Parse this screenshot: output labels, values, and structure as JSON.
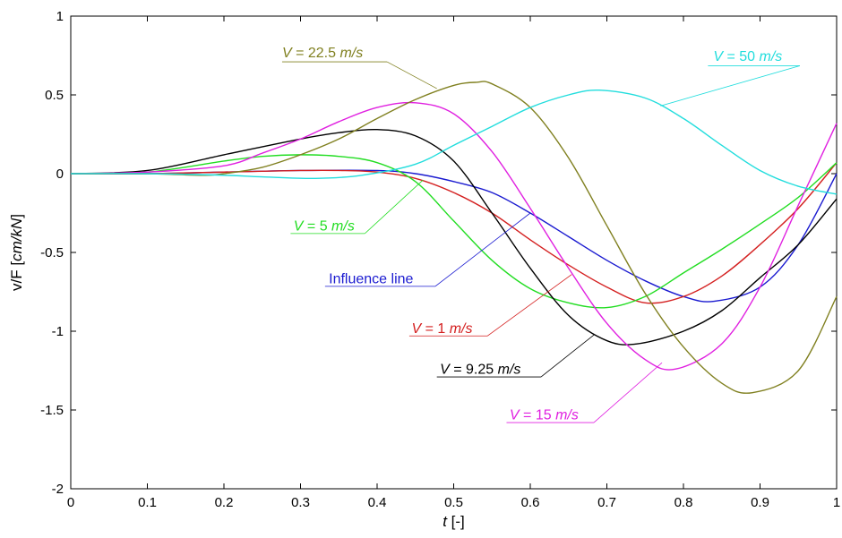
{
  "chart_data": {
    "type": "line",
    "xlabel": "t [-]",
    "xlabel_parts": {
      "var": "t",
      "unit": " [-]"
    },
    "ylabel": "v/F [cm/kN]",
    "ylabel_parts": {
      "pre": "v/F [",
      "unit": "cm/kN",
      "post": "]"
    },
    "xlim": [
      0,
      1
    ],
    "ylim": [
      -2,
      1
    ],
    "x_ticks": [
      {
        "value": 0,
        "label": "0"
      },
      {
        "value": 0.1,
        "label": "0.1"
      },
      {
        "value": 0.2,
        "label": "0.2"
      },
      {
        "value": 0.3,
        "label": "0.3"
      },
      {
        "value": 0.4,
        "label": "0.4"
      },
      {
        "value": 0.5,
        "label": "0.5"
      },
      {
        "value": 0.6,
        "label": "0.6"
      },
      {
        "value": 0.7,
        "label": "0.7"
      },
      {
        "value": 0.8,
        "label": "0.8"
      },
      {
        "value": 0.9,
        "label": "0.9"
      },
      {
        "value": 1,
        "label": "1"
      }
    ],
    "y_ticks": [
      {
        "value": 1,
        "label": "1"
      },
      {
        "value": 0.5,
        "label": "0.5"
      },
      {
        "value": 0,
        "label": "0"
      },
      {
        "value": -0.5,
        "label": "-0.5"
      },
      {
        "value": -1,
        "label": "-1"
      },
      {
        "value": -1.5,
        "label": "-1.5"
      },
      {
        "value": -2,
        "label": "-2"
      }
    ],
    "grid": false,
    "series": [
      {
        "key": "influence",
        "name": "Influence line",
        "color": "#1a1ad0",
        "x": [
          0,
          0.1,
          0.2,
          0.3,
          0.4,
          0.45,
          0.5,
          0.55,
          0.6,
          0.65,
          0.7,
          0.75,
          0.8,
          0.84,
          0.9,
          0.95,
          1
        ],
        "y": [
          0,
          0,
          0.01,
          0.02,
          0.02,
          0,
          -0.05,
          -0.12,
          -0.25,
          -0.4,
          -0.55,
          -0.68,
          -0.78,
          -0.81,
          -0.72,
          -0.45,
          0
        ]
      },
      {
        "key": "v1",
        "name": "V = 1 m/s",
        "color": "#d42020",
        "x": [
          0,
          0.1,
          0.2,
          0.3,
          0.35,
          0.4,
          0.45,
          0.5,
          0.55,
          0.6,
          0.65,
          0.7,
          0.75,
          0.8,
          0.85,
          0.9,
          0.95,
          1
        ],
        "y": [
          0,
          0,
          0.01,
          0.02,
          0.02,
          0.01,
          -0.03,
          -0.12,
          -0.25,
          -0.42,
          -0.58,
          -0.72,
          -0.82,
          -0.78,
          -0.65,
          -0.45,
          -0.22,
          0.07
        ]
      },
      {
        "key": "v5",
        "name": "V = 5 m/s",
        "color": "#22dd22",
        "x": [
          0,
          0.1,
          0.2,
          0.25,
          0.3,
          0.35,
          0.4,
          0.45,
          0.5,
          0.55,
          0.6,
          0.65,
          0.7,
          0.75,
          0.8,
          0.85,
          0.9,
          0.95,
          1
        ],
        "y": [
          0,
          0.01,
          0.08,
          0.11,
          0.12,
          0.11,
          0.07,
          -0.05,
          -0.3,
          -0.55,
          -0.73,
          -0.82,
          -0.85,
          -0.78,
          -0.63,
          -0.48,
          -0.32,
          -0.15,
          0.07
        ]
      },
      {
        "key": "v925",
        "name": "V = 9.25 m/s",
        "color": "#000000",
        "x": [
          0,
          0.1,
          0.2,
          0.3,
          0.35,
          0.4,
          0.45,
          0.5,
          0.55,
          0.6,
          0.65,
          0.7,
          0.74,
          0.8,
          0.85,
          0.9,
          0.95,
          1
        ],
        "y": [
          0,
          0.02,
          0.12,
          0.22,
          0.26,
          0.28,
          0.24,
          0.08,
          -0.25,
          -0.6,
          -0.9,
          -1.06,
          -1.08,
          -1.0,
          -0.87,
          -0.66,
          -0.45,
          -0.16
        ]
      },
      {
        "key": "v15",
        "name": "V = 15 m/s",
        "color": "#e020e0",
        "x": [
          0,
          0.1,
          0.2,
          0.25,
          0.3,
          0.35,
          0.4,
          0.45,
          0.5,
          0.55,
          0.6,
          0.65,
          0.7,
          0.75,
          0.79,
          0.85,
          0.9,
          0.95,
          1
        ],
        "y": [
          0,
          0.01,
          0.05,
          0.13,
          0.22,
          0.33,
          0.42,
          0.45,
          0.38,
          0.14,
          -0.22,
          -0.6,
          -0.95,
          -1.18,
          -1.24,
          -1.08,
          -0.72,
          -0.2,
          0.32
        ]
      },
      {
        "key": "v225",
        "name": "V = 22.5 m/s",
        "color": "#808020",
        "x": [
          0,
          0.1,
          0.17,
          0.2,
          0.25,
          0.3,
          0.35,
          0.4,
          0.45,
          0.5,
          0.53,
          0.55,
          0.6,
          0.65,
          0.7,
          0.75,
          0.8,
          0.85,
          0.89,
          0.95,
          1
        ],
        "y": [
          0,
          0,
          -0.01,
          0,
          0.04,
          0.12,
          0.22,
          0.35,
          0.47,
          0.56,
          0.58,
          0.57,
          0.42,
          0.1,
          -0.33,
          -0.76,
          -1.1,
          -1.33,
          -1.39,
          -1.25,
          -0.78
        ]
      },
      {
        "key": "v50",
        "name": "V = 50 m/s",
        "color": "#22dddd",
        "x": [
          0,
          0.1,
          0.2,
          0.25,
          0.32,
          0.38,
          0.45,
          0.5,
          0.55,
          0.6,
          0.65,
          0.69,
          0.75,
          0.8,
          0.85,
          0.9,
          0.95,
          1
        ],
        "y": [
          0,
          0,
          -0.01,
          -0.02,
          -0.03,
          -0.01,
          0.06,
          0.18,
          0.3,
          0.42,
          0.5,
          0.53,
          0.48,
          0.35,
          0.18,
          0.02,
          -0.08,
          -0.13
        ]
      }
    ],
    "annotations": [
      {
        "series": "v225",
        "prefix": "V",
        "suffix_num": " = 22.5 ",
        "unit": "m/s",
        "color": "#808020",
        "anchor": "start",
        "text_at": [
          0.276,
          0.74
        ],
        "underline": [
          0.276,
          0.413
        ],
        "underline_y": 0.71,
        "leader_to": [
          0.478,
          0.54
        ]
      },
      {
        "series": "v50",
        "prefix": "V",
        "suffix_num": " = 50 ",
        "unit": "m/s",
        "color": "#22dddd",
        "anchor": "start",
        "text_at": [
          0.839,
          0.715
        ],
        "underline": [
          0.832,
          0.952
        ],
        "underline_y": 0.685,
        "leader_to": [
          0.77,
          0.43
        ]
      },
      {
        "series": "v5",
        "prefix": "V",
        "suffix_num": " = 5 ",
        "unit": "m/s",
        "color": "#22dd22",
        "anchor": "start",
        "text_at": [
          0.291,
          -0.36
        ],
        "underline": [
          0.287,
          0.384
        ],
        "underline_y": -0.38,
        "leader_to": [
          0.46,
          -0.04
        ]
      },
      {
        "series": "influence",
        "prefix": "Influence line",
        "suffix_num": "",
        "unit": "",
        "color": "#1a1ad0",
        "anchor": "start",
        "text_at": [
          0.337,
          -0.695
        ],
        "underline": [
          0.332,
          0.476
        ],
        "underline_y": -0.715,
        "leader_to": [
          0.6,
          -0.25
        ]
      },
      {
        "series": "v1",
        "prefix": "V",
        "suffix_num": " = 1 ",
        "unit": "m/s",
        "color": "#d42020",
        "anchor": "start",
        "text_at": [
          0.445,
          -1.01
        ],
        "underline": [
          0.442,
          0.544
        ],
        "underline_y": -1.03,
        "leader_to": [
          0.654,
          -0.64
        ]
      },
      {
        "series": "v925",
        "prefix": "V",
        "suffix_num": " = 9.25 ",
        "unit": "m/s",
        "color": "#000000",
        "anchor": "start",
        "text_at": [
          0.482,
          -1.27
        ],
        "underline": [
          0.478,
          0.614
        ],
        "underline_y": -1.29,
        "leader_to": [
          0.684,
          -1.02
        ]
      },
      {
        "series": "v15",
        "prefix": "V",
        "suffix_num": " = 15 ",
        "unit": "m/s",
        "color": "#e020e0",
        "anchor": "start",
        "text_at": [
          0.573,
          -1.56
        ],
        "underline": [
          0.569,
          0.683
        ],
        "underline_y": -1.58,
        "leader_to": [
          0.772,
          -1.2
        ]
      }
    ]
  }
}
